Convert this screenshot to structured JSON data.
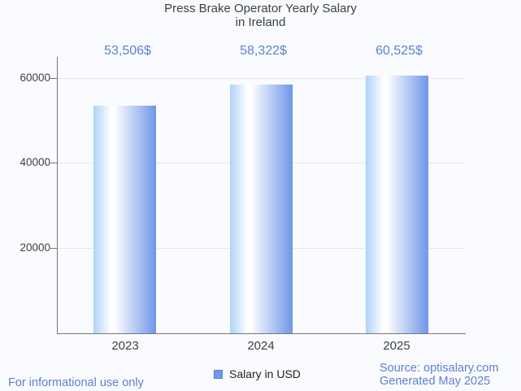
{
  "title": {
    "line1": "Press Brake Operator Yearly Salary",
    "line2": "in Ireland"
  },
  "chart_data": {
    "type": "bar",
    "title": "Press Brake Operator Yearly Salary in Ireland",
    "categories": [
      "2023",
      "2024",
      "2025"
    ],
    "series": [
      {
        "name": "Salary in USD",
        "values": [
          53506,
          58322,
          60525
        ]
      }
    ],
    "value_labels": [
      "53,506$",
      "58,322$",
      "60,525$"
    ],
    "ylim": [
      0,
      65000
    ],
    "yticks": [
      20000,
      40000,
      60000
    ],
    "grid": true,
    "legend_position": "bottom",
    "xlabel": "",
    "ylabel": ""
  },
  "legend": {
    "label": "Salary in USD"
  },
  "footer": {
    "disclaimer": "For informational use only",
    "source": "Source: optisalary.com",
    "generated": "Generated May 2025"
  },
  "colors": {
    "accent_value_label": "#5b80d5",
    "footer_blue": "#5f7fd2",
    "bar_gradient_left": "#aed3f9",
    "bar_gradient_mid": "#ffffff",
    "bar_gradient_right": "#6f96e8",
    "legend_swatch": "#6f9ae8",
    "legend_swatch_border": "#5981cd",
    "axis_line": "#757575",
    "gridline": "#e6e6e6",
    "text_dark": "#3c4043"
  }
}
